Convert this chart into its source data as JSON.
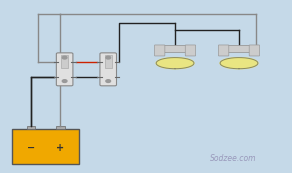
{
  "bg_color": "#c5d9e8",
  "battery_color": "#f0a800",
  "battery_border": "#555555",
  "wire_black": "#222222",
  "wire_red": "#cc2200",
  "wire_gray": "#888888",
  "watermark": "Sodzee.com",
  "watermark_color": "#9999bb",
  "switch_body": "#e0e0e0",
  "switch_border": "#888888",
  "switch_lever": "#cccccc",
  "bulb_fill": "#f5f0c0",
  "bulb_glow": "#f0e870",
  "bulb_outline": "#888866",
  "bulb_socket": "#cccccc",
  "bulb_socket_border": "#999999"
}
